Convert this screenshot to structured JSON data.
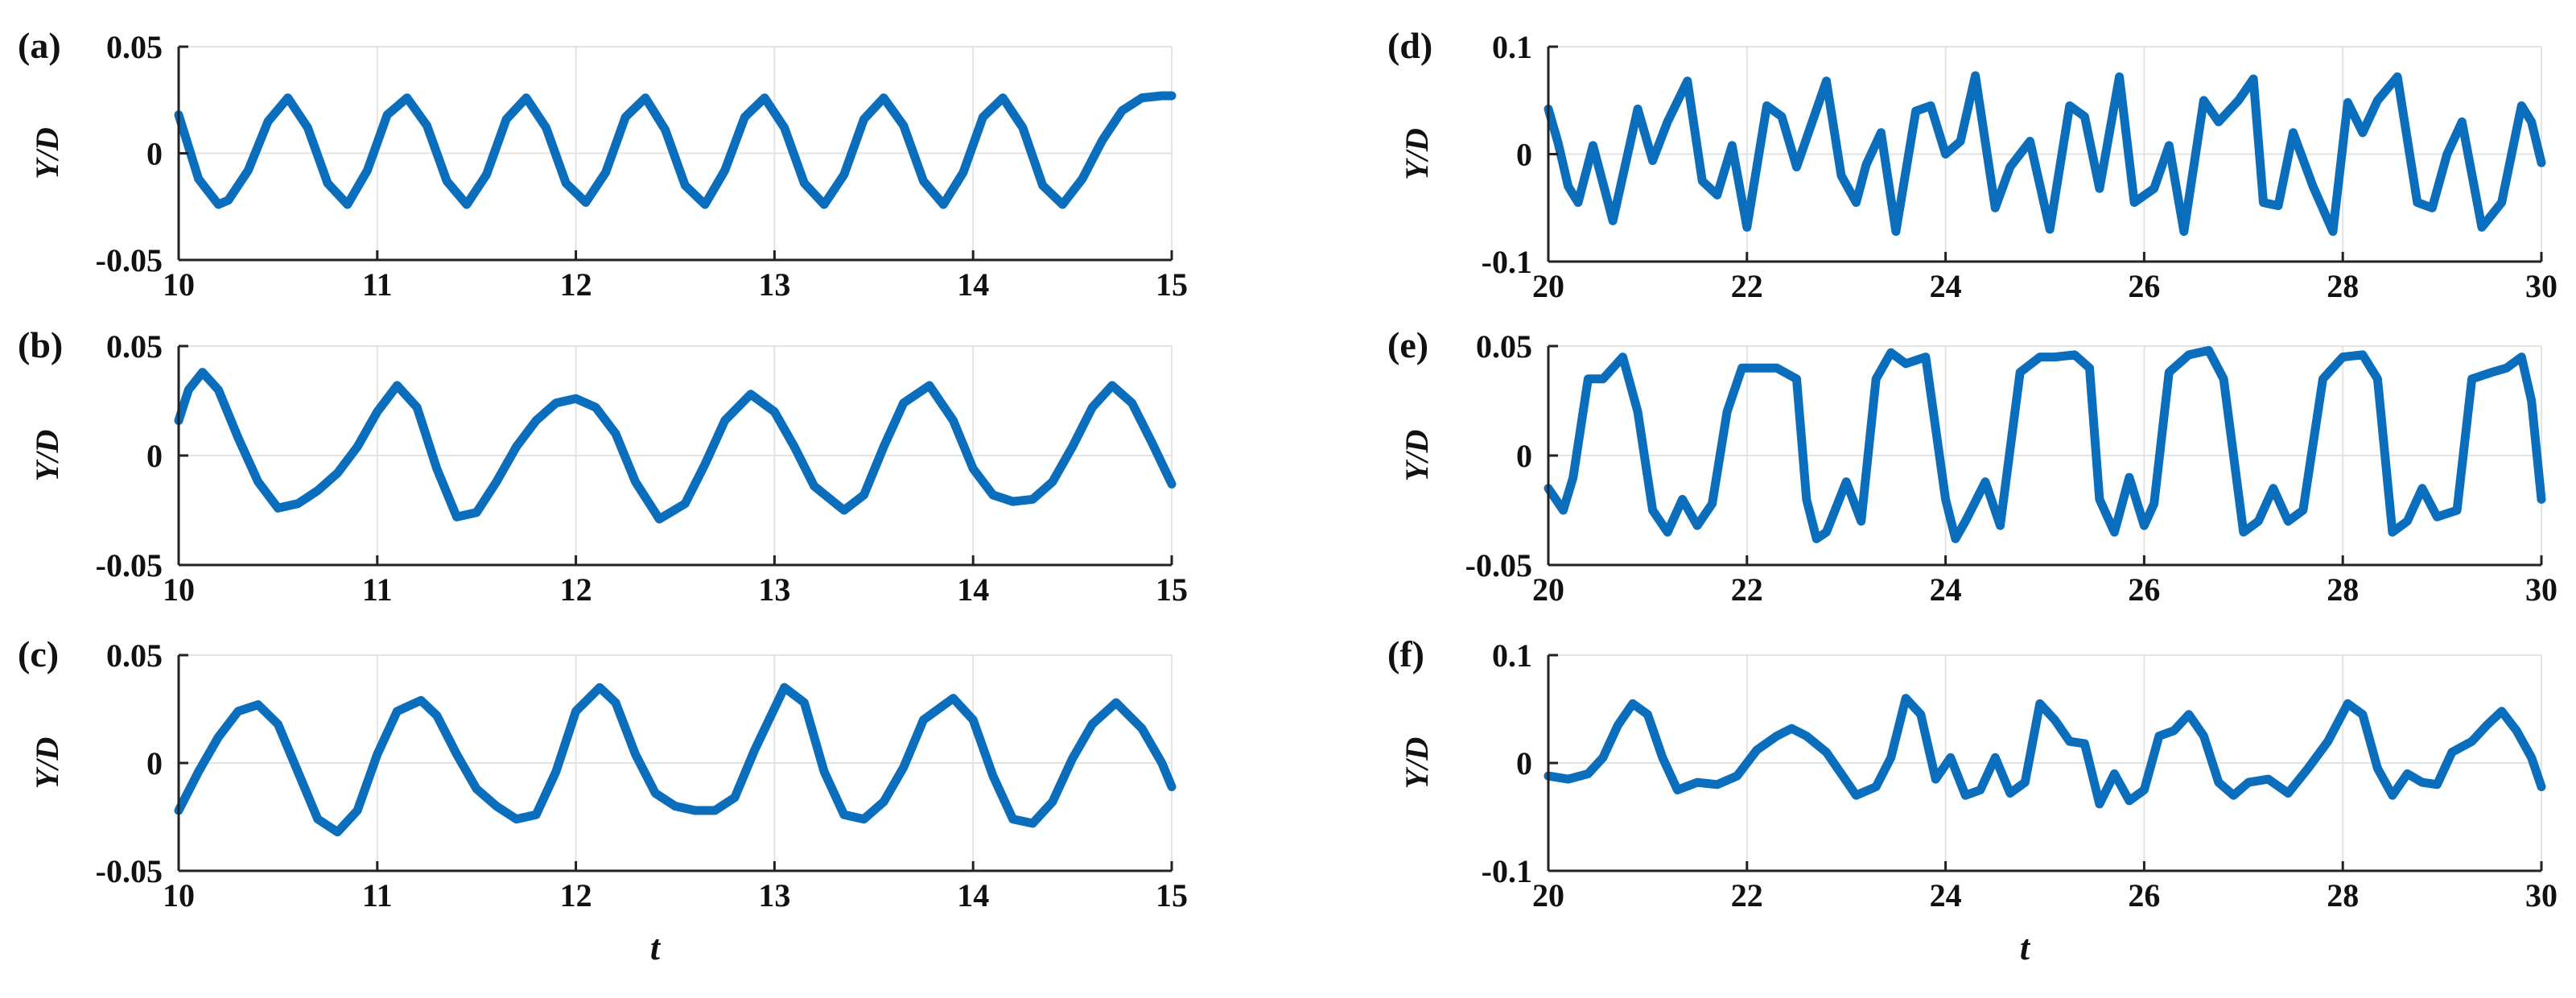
{
  "chart_data": [
    {
      "id": "a",
      "type": "line",
      "panel_label": "(a)",
      "xlabel": "",
      "ylabel": "Y/D",
      "xlim": [
        10,
        15
      ],
      "ylim": [
        -0.05,
        0.05
      ],
      "xticks": [
        10,
        11,
        12,
        13,
        14,
        15
      ],
      "yticks": [
        -0.05,
        0,
        0.05
      ],
      "ytick_labels": [
        "-0.05",
        "0",
        "0.05"
      ],
      "grid": true,
      "series": [
        {
          "color": "#0a6ebd",
          "x": [
            10.0,
            10.1,
            10.2,
            10.25,
            10.35,
            10.45,
            10.55,
            10.65,
            10.75,
            10.85,
            10.95,
            11.05,
            11.15,
            11.25,
            11.35,
            11.45,
            11.55,
            11.65,
            11.75,
            11.85,
            11.95,
            12.05,
            12.15,
            12.25,
            12.35,
            12.45,
            12.55,
            12.65,
            12.75,
            12.85,
            12.95,
            13.05,
            13.15,
            13.25,
            13.35,
            13.45,
            13.55,
            13.65,
            13.75,
            13.85,
            13.95,
            14.05,
            14.15,
            14.25,
            14.35,
            14.45,
            14.55,
            14.65,
            14.75,
            14.85,
            14.95,
            15.0
          ],
          "y": [
            0.018,
            -0.012,
            -0.024,
            -0.022,
            -0.008,
            0.015,
            0.026,
            0.012,
            -0.014,
            -0.024,
            -0.008,
            0.018,
            0.026,
            0.013,
            -0.013,
            -0.024,
            -0.01,
            0.016,
            0.026,
            0.012,
            -0.014,
            -0.023,
            -0.009,
            0.017,
            0.026,
            0.011,
            -0.015,
            -0.024,
            -0.008,
            0.017,
            0.026,
            0.012,
            -0.014,
            -0.024,
            -0.01,
            0.016,
            0.026,
            0.013,
            -0.013,
            -0.024,
            -0.009,
            0.017,
            0.026,
            0.012,
            -0.015,
            -0.024,
            -0.012,
            0.006,
            0.02,
            0.026,
            0.027,
            0.027
          ]
        }
      ]
    },
    {
      "id": "b",
      "type": "line",
      "panel_label": "(b)",
      "xlabel": "",
      "ylabel": "Y/D",
      "xlim": [
        10,
        15
      ],
      "ylim": [
        -0.05,
        0.05
      ],
      "xticks": [
        10,
        11,
        12,
        13,
        14,
        15
      ],
      "yticks": [
        -0.05,
        0,
        0.05
      ],
      "ytick_labels": [
        "-0.05",
        "0",
        "0.05"
      ],
      "grid": true,
      "series": [
        {
          "color": "#0a6ebd",
          "x": [
            10.0,
            10.05,
            10.12,
            10.2,
            10.3,
            10.4,
            10.5,
            10.6,
            10.7,
            10.8,
            10.9,
            11.0,
            11.1,
            11.2,
            11.3,
            11.4,
            11.5,
            11.6,
            11.7,
            11.8,
            11.9,
            12.0,
            12.1,
            12.2,
            12.3,
            12.42,
            12.55,
            12.65,
            12.75,
            12.88,
            13.0,
            13.1,
            13.2,
            13.35,
            13.45,
            13.55,
            13.65,
            13.78,
            13.9,
            14.0,
            14.1,
            14.2,
            14.3,
            14.4,
            14.5,
            14.6,
            14.7,
            14.8,
            14.9,
            15.0
          ],
          "y": [
            0.016,
            0.03,
            0.038,
            0.03,
            0.008,
            -0.012,
            -0.024,
            -0.022,
            -0.016,
            -0.008,
            0.004,
            0.02,
            0.032,
            0.022,
            -0.006,
            -0.028,
            -0.026,
            -0.012,
            0.004,
            0.016,
            0.024,
            0.026,
            0.022,
            0.01,
            -0.012,
            -0.029,
            -0.022,
            -0.004,
            0.016,
            0.028,
            0.02,
            0.004,
            -0.014,
            -0.025,
            -0.018,
            0.004,
            0.024,
            0.032,
            0.016,
            -0.006,
            -0.018,
            -0.021,
            -0.02,
            -0.012,
            0.004,
            0.022,
            0.032,
            0.024,
            0.006,
            -0.013
          ]
        }
      ]
    },
    {
      "id": "c",
      "type": "line",
      "panel_label": "(c)",
      "xlabel": "t",
      "ylabel": "Y/D",
      "xlim": [
        10,
        15
      ],
      "ylim": [
        -0.05,
        0.05
      ],
      "xticks": [
        10,
        11,
        12,
        13,
        14,
        15
      ],
      "yticks": [
        -0.05,
        0,
        0.05
      ],
      "ytick_labels": [
        "-0.05",
        "0",
        "0.05"
      ],
      "grid": true,
      "series": [
        {
          "color": "#0a6ebd",
          "x": [
            10.0,
            10.1,
            10.2,
            10.3,
            10.4,
            10.5,
            10.6,
            10.7,
            10.8,
            10.9,
            11.0,
            11.1,
            11.22,
            11.3,
            11.4,
            11.5,
            11.6,
            11.7,
            11.8,
            11.9,
            12.0,
            12.12,
            12.2,
            12.3,
            12.4,
            12.5,
            12.6,
            12.7,
            12.8,
            12.9,
            13.05,
            13.15,
            13.25,
            13.35,
            13.45,
            13.55,
            13.65,
            13.75,
            13.9,
            14.0,
            14.1,
            14.2,
            14.3,
            14.4,
            14.5,
            14.6,
            14.72,
            14.85,
            14.95,
            15.0
          ],
          "y": [
            -0.022,
            -0.004,
            0.012,
            0.024,
            0.027,
            0.018,
            -0.004,
            -0.026,
            -0.032,
            -0.022,
            0.004,
            0.024,
            0.029,
            0.022,
            0.004,
            -0.012,
            -0.02,
            -0.026,
            -0.024,
            -0.004,
            0.024,
            0.035,
            0.028,
            0.004,
            -0.014,
            -0.02,
            -0.022,
            -0.022,
            -0.016,
            0.006,
            0.035,
            0.028,
            -0.004,
            -0.024,
            -0.026,
            -0.018,
            -0.002,
            0.02,
            0.03,
            0.02,
            -0.006,
            -0.026,
            -0.028,
            -0.018,
            0.002,
            0.018,
            0.028,
            0.016,
            0.0,
            -0.011
          ]
        }
      ]
    },
    {
      "id": "d",
      "type": "line",
      "panel_label": "(d)",
      "xlabel": "",
      "ylabel": "Y/D",
      "xlim": [
        20,
        30
      ],
      "ylim": [
        -0.1,
        0.1
      ],
      "xticks": [
        20,
        22,
        24,
        26,
        28,
        30
      ],
      "yticks": [
        -0.1,
        0,
        0.1
      ],
      "ytick_labels": [
        "-0.1",
        "0",
        "0.1"
      ],
      "grid": true,
      "series": [
        {
          "color": "#0a6ebd",
          "x": [
            20.0,
            20.1,
            20.2,
            20.3,
            20.45,
            20.65,
            20.9,
            21.05,
            21.2,
            21.4,
            21.55,
            21.7,
            21.85,
            22.0,
            22.2,
            22.35,
            22.5,
            22.65,
            22.8,
            22.95,
            23.1,
            23.2,
            23.35,
            23.5,
            23.7,
            23.85,
            24.0,
            24.15,
            24.3,
            24.5,
            24.65,
            24.85,
            25.05,
            25.25,
            25.4,
            25.55,
            25.75,
            25.9,
            26.1,
            26.25,
            26.4,
            26.6,
            26.75,
            26.95,
            27.1,
            27.2,
            27.35,
            27.5,
            27.7,
            27.9,
            28.05,
            28.2,
            28.35,
            28.55,
            28.75,
            28.9,
            29.05,
            29.2,
            29.4,
            29.6,
            29.8,
            29.9,
            30.0
          ],
          "y": [
            0.042,
            0.01,
            -0.03,
            -0.045,
            0.008,
            -0.062,
            0.042,
            -0.006,
            0.03,
            0.068,
            -0.025,
            -0.038,
            0.008,
            -0.068,
            0.045,
            0.035,
            -0.012,
            0.028,
            0.068,
            -0.02,
            -0.045,
            -0.01,
            0.02,
            -0.072,
            0.04,
            0.045,
            0.0,
            0.012,
            0.073,
            -0.05,
            -0.012,
            0.012,
            -0.07,
            0.045,
            0.035,
            -0.032,
            0.072,
            -0.045,
            -0.032,
            0.008,
            -0.072,
            0.05,
            0.03,
            0.05,
            0.07,
            -0.045,
            -0.048,
            0.02,
            -0.03,
            -0.072,
            0.048,
            0.02,
            0.05,
            0.072,
            -0.045,
            -0.05,
            0.0,
            0.03,
            -0.068,
            -0.045,
            0.045,
            0.03,
            -0.008
          ]
        }
      ]
    },
    {
      "id": "e",
      "type": "line",
      "panel_label": "(e)",
      "xlabel": "",
      "ylabel": "Y/D",
      "xlim": [
        20,
        30
      ],
      "ylim": [
        -0.05,
        0.05
      ],
      "xticks": [
        20,
        22,
        24,
        26,
        28,
        30
      ],
      "yticks": [
        -0.05,
        0,
        0.05
      ],
      "ytick_labels": [
        "-0.05",
        "0",
        "0.05"
      ],
      "grid": true,
      "series": [
        {
          "color": "#0a6ebd",
          "x": [
            20.0,
            20.15,
            20.25,
            20.4,
            20.55,
            20.75,
            20.9,
            21.05,
            21.2,
            21.35,
            21.5,
            21.65,
            21.8,
            21.95,
            22.1,
            22.3,
            22.5,
            22.6,
            22.7,
            22.8,
            23.0,
            23.15,
            23.3,
            23.45,
            23.6,
            23.8,
            24.0,
            24.1,
            24.2,
            24.4,
            24.55,
            24.75,
            24.95,
            25.1,
            25.3,
            25.45,
            25.55,
            25.7,
            25.85,
            26.0,
            26.1,
            26.25,
            26.45,
            26.65,
            26.8,
            27.0,
            27.15,
            27.3,
            27.45,
            27.6,
            27.8,
            28.0,
            28.2,
            28.35,
            28.5,
            28.65,
            28.8,
            28.95,
            29.15,
            29.3,
            29.5,
            29.65,
            29.8,
            29.9,
            30.0
          ],
          "y": [
            -0.015,
            -0.025,
            -0.01,
            0.035,
            0.035,
            0.045,
            0.02,
            -0.025,
            -0.035,
            -0.02,
            -0.032,
            -0.022,
            0.02,
            0.04,
            0.04,
            0.04,
            0.035,
            -0.02,
            -0.038,
            -0.035,
            -0.012,
            -0.03,
            0.035,
            0.047,
            0.042,
            0.045,
            -0.02,
            -0.038,
            -0.03,
            -0.012,
            -0.032,
            0.038,
            0.045,
            0.045,
            0.046,
            0.04,
            -0.02,
            -0.035,
            -0.01,
            -0.032,
            -0.022,
            0.038,
            0.046,
            0.048,
            0.035,
            -0.035,
            -0.03,
            -0.015,
            -0.03,
            -0.025,
            0.035,
            0.045,
            0.046,
            0.035,
            -0.035,
            -0.03,
            -0.015,
            -0.028,
            -0.025,
            0.035,
            0.038,
            0.04,
            0.045,
            0.025,
            -0.02
          ]
        }
      ]
    },
    {
      "id": "f",
      "type": "line",
      "panel_label": "(f)",
      "xlabel": "t",
      "ylabel": "Y/D",
      "xlim": [
        20,
        30
      ],
      "ylim": [
        -0.1,
        0.1
      ],
      "xticks": [
        20,
        22,
        24,
        26,
        28,
        30
      ],
      "yticks": [
        -0.1,
        0,
        0.1
      ],
      "ytick_labels": [
        "-0.1",
        "0",
        "0.1"
      ],
      "grid": true,
      "series": [
        {
          "color": "#0a6ebd",
          "x": [
            20.0,
            20.2,
            20.4,
            20.55,
            20.7,
            20.85,
            21.0,
            21.15,
            21.3,
            21.5,
            21.7,
            21.9,
            22.1,
            22.3,
            22.45,
            22.6,
            22.8,
            22.95,
            23.1,
            23.3,
            23.45,
            23.6,
            23.75,
            23.9,
            24.05,
            24.2,
            24.35,
            24.5,
            24.65,
            24.8,
            24.95,
            25.1,
            25.25,
            25.4,
            25.55,
            25.7,
            25.85,
            26.0,
            26.15,
            26.3,
            26.45,
            26.6,
            26.75,
            26.9,
            27.05,
            27.25,
            27.45,
            27.65,
            27.85,
            28.05,
            28.2,
            28.35,
            28.5,
            28.65,
            28.8,
            28.95,
            29.1,
            29.3,
            29.45,
            29.6,
            29.75,
            29.9,
            30.0
          ],
          "y": [
            -0.012,
            -0.015,
            -0.01,
            0.005,
            0.035,
            0.055,
            0.045,
            0.005,
            -0.025,
            -0.018,
            -0.02,
            -0.012,
            0.012,
            0.025,
            0.032,
            0.025,
            0.01,
            -0.01,
            -0.03,
            -0.022,
            0.005,
            0.06,
            0.045,
            -0.015,
            0.005,
            -0.03,
            -0.025,
            0.005,
            -0.028,
            -0.018,
            0.055,
            0.04,
            0.02,
            0.018,
            -0.038,
            -0.01,
            -0.035,
            -0.025,
            0.025,
            0.03,
            0.045,
            0.025,
            -0.018,
            -0.03,
            -0.018,
            -0.015,
            -0.028,
            -0.005,
            0.02,
            0.055,
            0.045,
            -0.005,
            -0.03,
            -0.01,
            -0.018,
            -0.02,
            0.01,
            0.02,
            0.035,
            0.048,
            0.03,
            0.005,
            -0.022
          ]
        }
      ]
    }
  ]
}
